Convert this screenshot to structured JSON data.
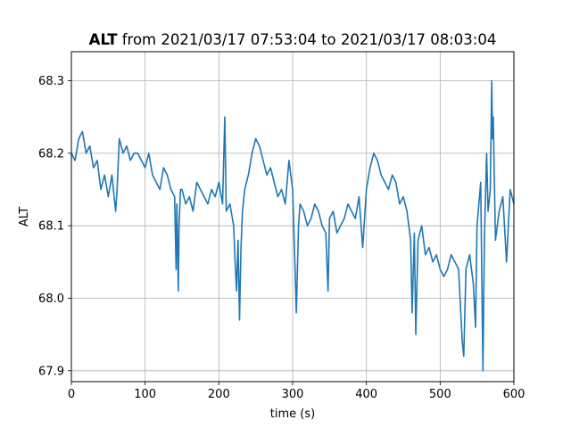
{
  "chart_data": {
    "type": "line",
    "title_bold": "ALT",
    "title_rest": " from 2021/03/17 07:53:04 to 2021/03/17 08:03:04",
    "xlabel": "time (s)",
    "ylabel": "ALT",
    "xlim": [
      0,
      600
    ],
    "ylim": [
      67.885,
      68.34
    ],
    "xticks": [
      0,
      100,
      200,
      300,
      400,
      500,
      600
    ],
    "yticks": [
      67.9,
      68.0,
      68.1,
      68.2,
      68.3
    ],
    "grid": true,
    "series_color": "#1f77b4",
    "series": [
      {
        "x": [
          0,
          5,
          10,
          15,
          20,
          25,
          30,
          35,
          40,
          45,
          50,
          55,
          60,
          62,
          65,
          70,
          75,
          80,
          85,
          90,
          95,
          100,
          105,
          110,
          115,
          120,
          125,
          130,
          135,
          140,
          142,
          143,
          145,
          146,
          148,
          150,
          155,
          160,
          165,
          170,
          175,
          180,
          185,
          190,
          195,
          200,
          205,
          208,
          210,
          215,
          220,
          222,
          224,
          226,
          228,
          230,
          232,
          235,
          240,
          245,
          250,
          255,
          260,
          265,
          270,
          275,
          280,
          285,
          290,
          295,
          300,
          303,
          305,
          308,
          310,
          315,
          320,
          325,
          330,
          335,
          340,
          345,
          348,
          350,
          355,
          360,
          365,
          370,
          375,
          380,
          385,
          390,
          395,
          400,
          405,
          410,
          415,
          420,
          425,
          430,
          435,
          440,
          445,
          450,
          455,
          460,
          462,
          465,
          467,
          470,
          475,
          480,
          485,
          490,
          495,
          500,
          505,
          510,
          515,
          520,
          525,
          528,
          530,
          532,
          535,
          540,
          545,
          548,
          550,
          555,
          558,
          560,
          563,
          565,
          568,
          570,
          571,
          572,
          575,
          580,
          585,
          590,
          595,
          600
        ],
        "y": [
          68.2,
          68.19,
          68.22,
          68.23,
          68.2,
          68.21,
          68.18,
          68.19,
          68.15,
          68.17,
          68.14,
          68.17,
          68.12,
          68.15,
          68.22,
          68.2,
          68.21,
          68.19,
          68.2,
          68.2,
          68.19,
          68.18,
          68.2,
          68.17,
          68.16,
          68.15,
          68.18,
          68.17,
          68.15,
          68.14,
          68.04,
          68.13,
          68.01,
          68.1,
          68.15,
          68.15,
          68.13,
          68.14,
          68.12,
          68.16,
          68.15,
          68.14,
          68.13,
          68.15,
          68.14,
          68.16,
          68.13,
          68.25,
          68.12,
          68.13,
          68.1,
          68.05,
          68.01,
          68.08,
          67.97,
          68.07,
          68.12,
          68.15,
          68.17,
          68.2,
          68.22,
          68.21,
          68.19,
          68.17,
          68.18,
          68.16,
          68.14,
          68.15,
          68.13,
          68.19,
          68.15,
          68.05,
          67.98,
          68.1,
          68.13,
          68.12,
          68.1,
          68.11,
          68.13,
          68.12,
          68.1,
          68.09,
          68.01,
          68.11,
          68.12,
          68.09,
          68.1,
          68.11,
          68.13,
          68.12,
          68.11,
          68.14,
          68.07,
          68.15,
          68.18,
          68.2,
          68.19,
          68.17,
          68.16,
          68.15,
          68.17,
          68.16,
          68.13,
          68.14,
          68.12,
          68.08,
          67.98,
          68.09,
          67.95,
          68.08,
          68.1,
          68.06,
          68.07,
          68.05,
          68.06,
          68.04,
          68.03,
          68.04,
          68.06,
          68.05,
          68.04,
          67.98,
          67.94,
          67.92,
          68.04,
          68.06,
          68.02,
          67.96,
          68.1,
          68.16,
          67.9,
          68.08,
          68.2,
          68.12,
          68.15,
          68.3,
          68.22,
          68.25,
          68.08,
          68.12,
          68.14,
          68.05,
          68.15,
          68.13
        ]
      }
    ]
  }
}
